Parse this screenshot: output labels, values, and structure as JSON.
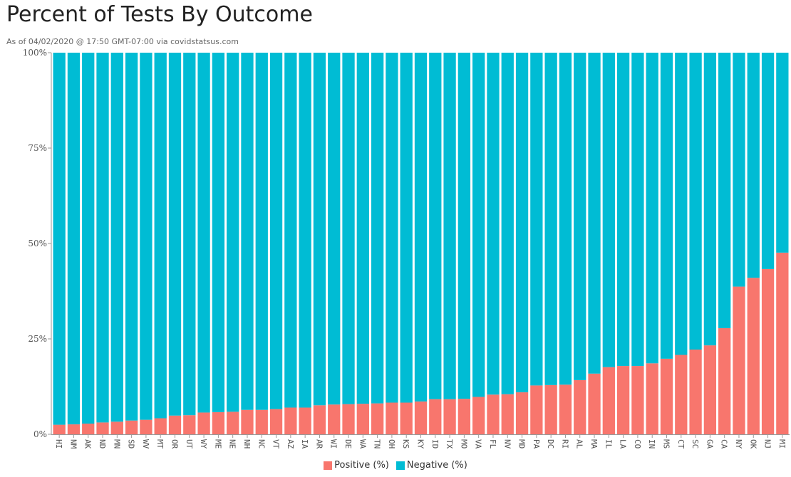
{
  "title": "Percent of Tests By Outcome",
  "subtitle": "As of 04/02/2020 @ 17:50 GMT-07:00 via covidstatsus.com",
  "colors": {
    "positive": "#f8766d",
    "negative": "#00bcd4"
  },
  "chart_data": {
    "type": "bar",
    "stacked": true,
    "categories": [
      "HI",
      "NM",
      "AK",
      "ND",
      "MN",
      "SD",
      "WV",
      "MT",
      "OR",
      "UT",
      "WY",
      "ME",
      "NE",
      "NH",
      "NC",
      "VT",
      "AZ",
      "IA",
      "AR",
      "WI",
      "DE",
      "WA",
      "TN",
      "OH",
      "KS",
      "KY",
      "ID",
      "TX",
      "MO",
      "VA",
      "FL",
      "NV",
      "MD",
      "PA",
      "DC",
      "RI",
      "AL",
      "MA",
      "IL",
      "LA",
      "CO",
      "IN",
      "MS",
      "CT",
      "SC",
      "GA",
      "CA",
      "NY",
      "OK",
      "NJ",
      "MI"
    ],
    "series": [
      {
        "name": "Positive (%)",
        "values": [
          2.5,
          2.6,
          2.8,
          3.1,
          3.3,
          3.6,
          3.8,
          4.2,
          4.9,
          5.0,
          5.7,
          5.8,
          5.9,
          6.4,
          6.4,
          6.6,
          7.0,
          7.0,
          7.6,
          7.8,
          7.9,
          8.0,
          8.1,
          8.3,
          8.3,
          8.6,
          9.2,
          9.2,
          9.3,
          9.8,
          10.4,
          10.5,
          11.0,
          12.8,
          12.9,
          13.0,
          14.2,
          15.9,
          17.6,
          17.9,
          17.9,
          18.6,
          19.8,
          20.8,
          22.2,
          23.3,
          27.8,
          38.7,
          41.0,
          43.3,
          47.6
        ]
      },
      {
        "name": "Negative (%)",
        "values": [
          97.5,
          97.4,
          97.2,
          96.9,
          96.7,
          96.4,
          96.2,
          95.8,
          95.1,
          95.0,
          94.3,
          94.2,
          94.1,
          93.6,
          93.6,
          93.4,
          93.0,
          93.0,
          92.4,
          92.2,
          92.1,
          92.0,
          91.9,
          91.7,
          91.7,
          91.4,
          90.8,
          90.8,
          90.7,
          90.2,
          89.6,
          89.5,
          89.0,
          87.2,
          87.1,
          87.0,
          85.8,
          84.1,
          82.4,
          82.1,
          82.1,
          81.4,
          80.2,
          79.2,
          77.8,
          76.7,
          72.2,
          61.3,
          59.0,
          56.7,
          52.4
        ]
      }
    ],
    "ylim": [
      0,
      100
    ],
    "y_ticks": [
      0,
      25,
      50,
      75,
      100
    ],
    "y_tick_labels": [
      "0%",
      "25%",
      "50%",
      "75%",
      "100%"
    ],
    "xlabel": "",
    "ylabel": "",
    "grid": false,
    "legend_position": "bottom-center"
  }
}
